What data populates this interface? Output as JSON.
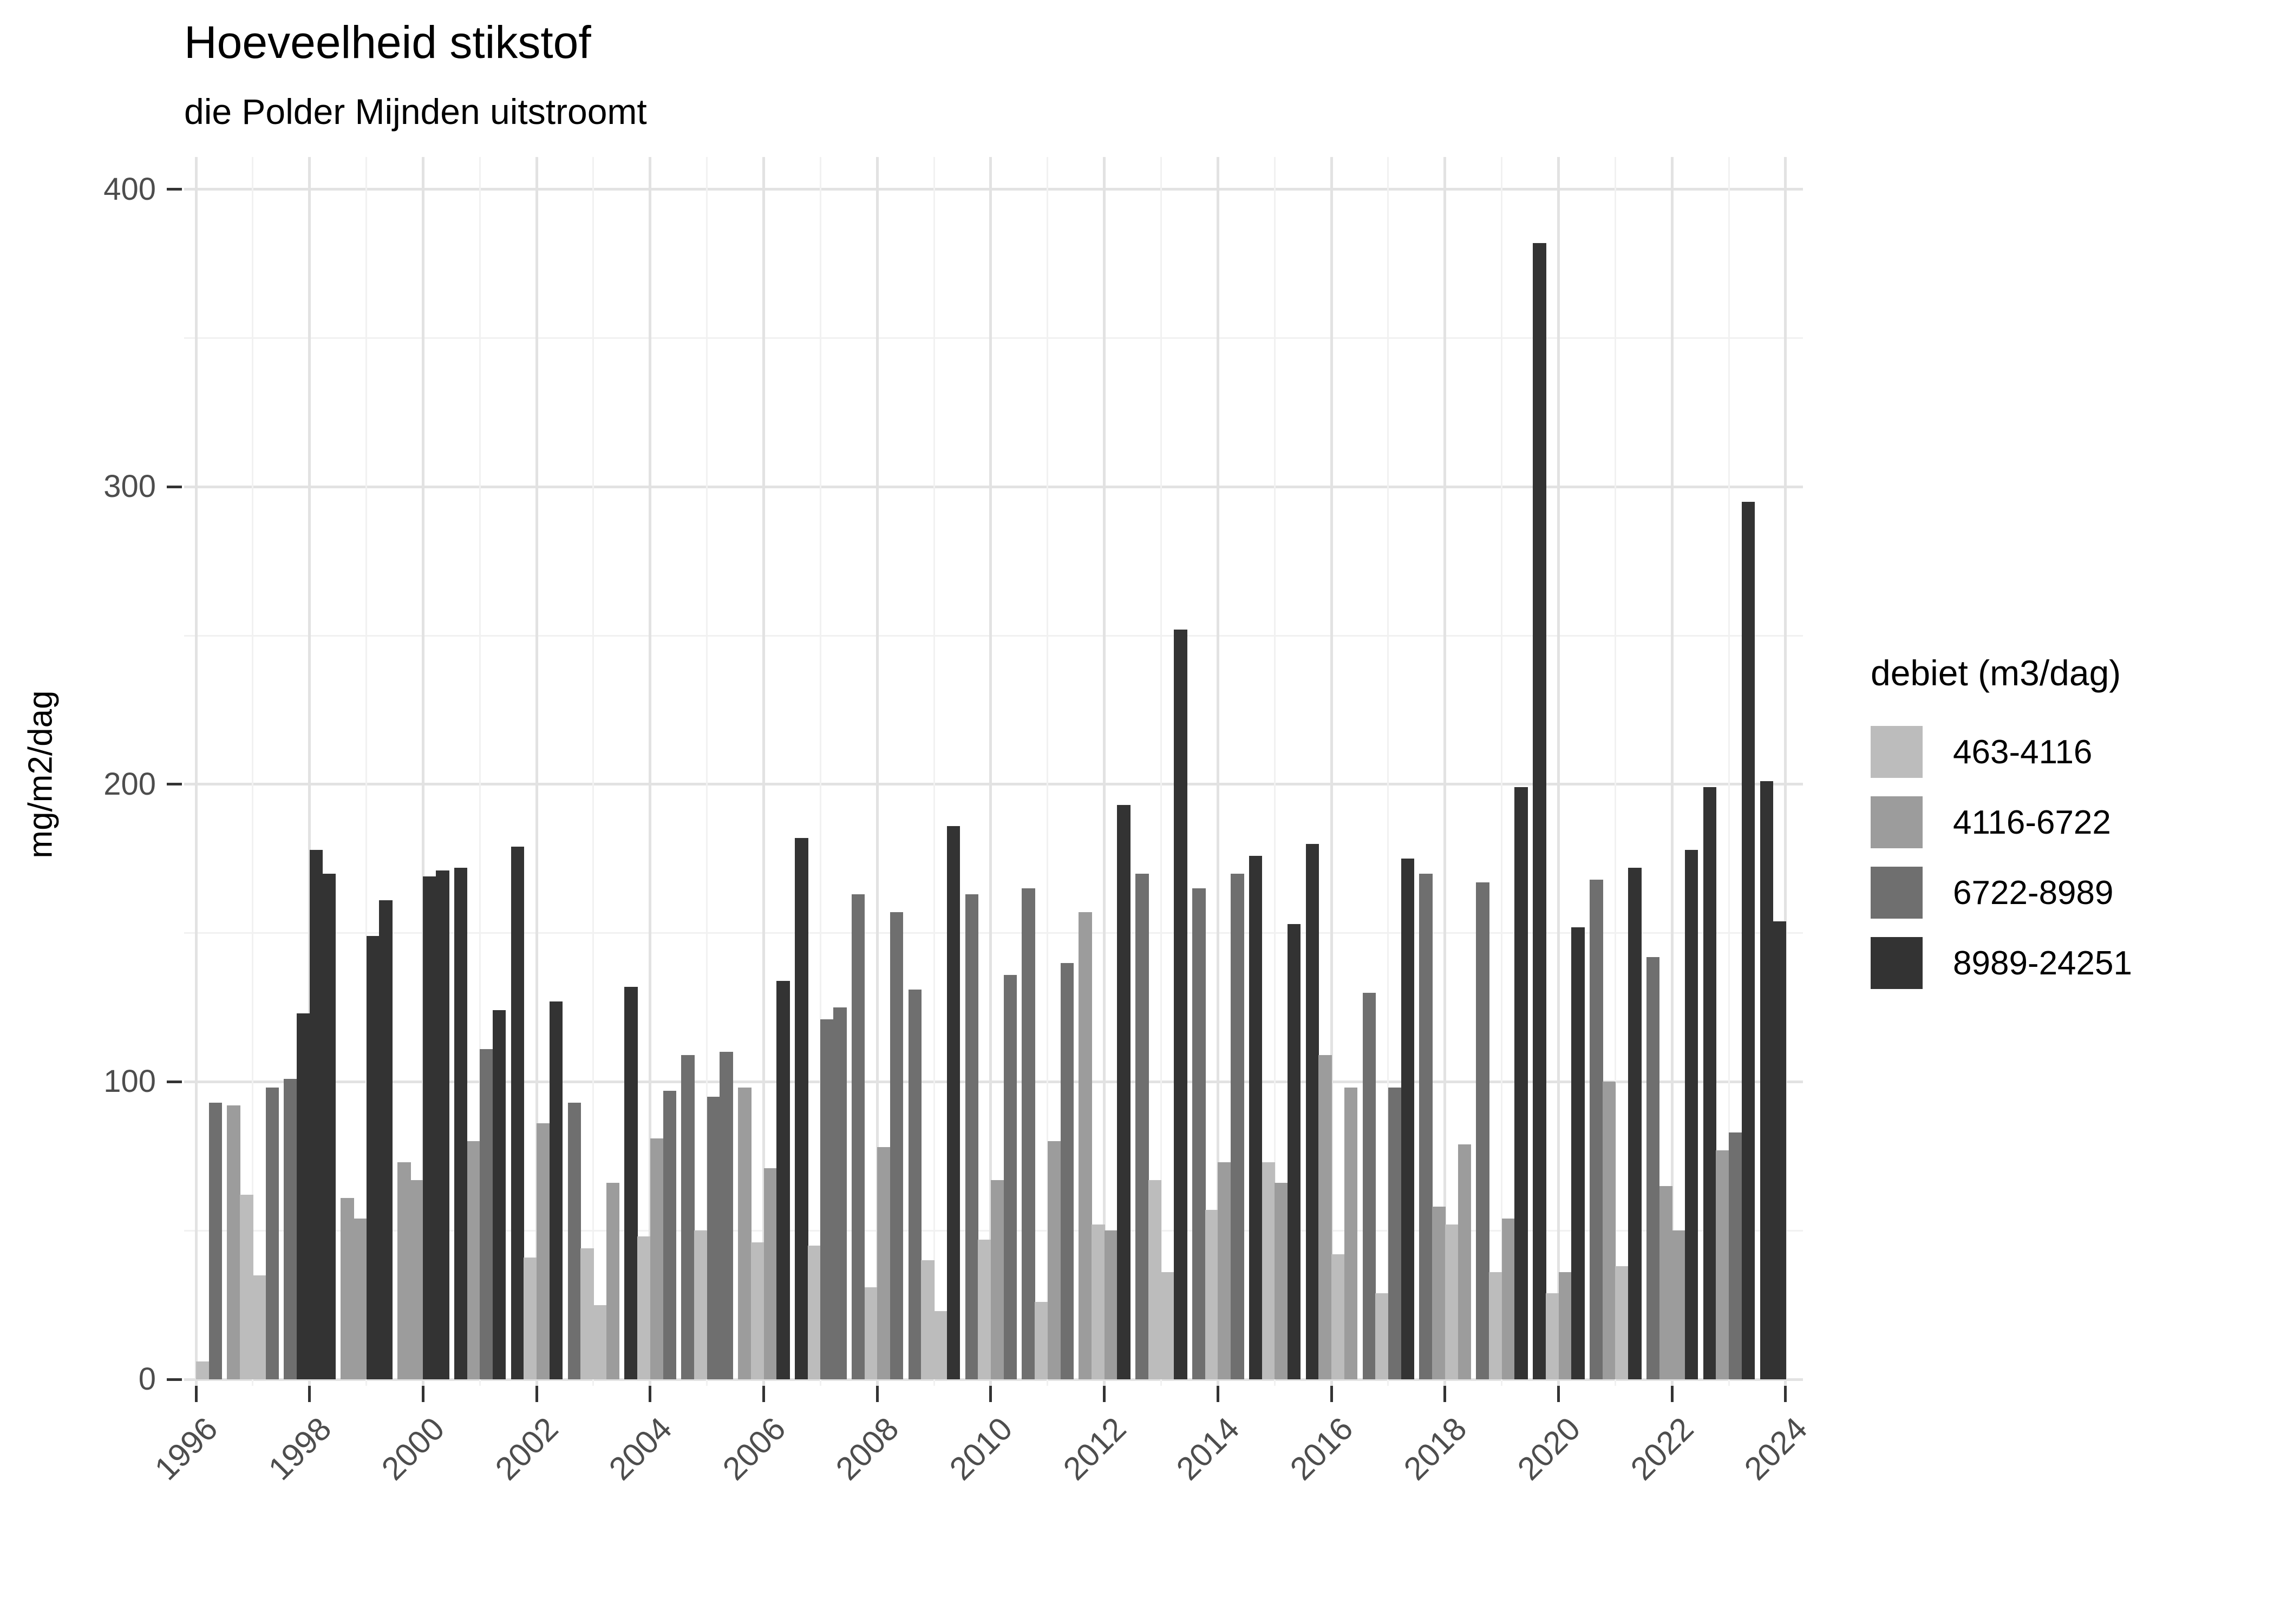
{
  "title": "Hoeveelheid stikstof",
  "subtitle": "die Polder Mijnden uitstroomt",
  "y_axis_title": "mg/m2/dag",
  "legend": {
    "title": "debiet (m3/dag)",
    "items": [
      {
        "label": "463-4116",
        "key": "L",
        "color": "#bcbcbc"
      },
      {
        "label": "4116-6722",
        "key": "M",
        "color": "#9c9c9c"
      },
      {
        "label": "6722-8989",
        "key": "D",
        "color": "#6f6f6f"
      },
      {
        "label": "8989-24251",
        "key": "K",
        "color": "#333333"
      }
    ]
  },
  "chart_data": {
    "type": "bar",
    "title": "Hoeveelheid stikstof",
    "subtitle": "die Polder Mijnden uitstroomt",
    "xlabel": "",
    "ylabel": "mg/m2/dag",
    "legend_title": "debiet (m3/dag)",
    "legend_position": "right",
    "grid": true,
    "ylim": [
      0,
      400
    ],
    "y_ticks": [
      0,
      100,
      200,
      300,
      400
    ],
    "y_minor_ticks": [
      50,
      150,
      250,
      350
    ],
    "x_tick_years": [
      1996,
      1998,
      2000,
      2002,
      2004,
      2006,
      2008,
      2010,
      2012,
      2014,
      2016,
      2018,
      2020,
      2022,
      2024
    ],
    "x_all_years": [
      1996,
      1997,
      1998,
      1999,
      2000,
      2001,
      2002,
      2003,
      2004,
      2005,
      2006,
      2007,
      2008,
      2009,
      2010,
      2011,
      2012,
      2013,
      2014,
      2015,
      2016,
      2017,
      2018,
      2019,
      2020,
      2021,
      2022,
      2023,
      2024
    ],
    "palette": {
      "L": "#bcbcbc",
      "M": "#9c9c9c",
      "D": "#6f6f6f",
      "K": "#333333"
    },
    "category_ranges": {
      "L": "463-4116",
      "M": "4116-6722",
      "D": "6722-8989",
      "K": "8989-24251"
    },
    "note": "Each year tick has a group of 4 quarterly bars (slots 0-3) centered on the year gridline; value in mg/m2/dag, category = debiet class",
    "groups": [
      {
        "year": 1996,
        "bars": [
          [
            2,
            6,
            "L"
          ],
          [
            3,
            93,
            "D"
          ]
        ]
      },
      {
        "year": 1997,
        "bars": [
          [
            0,
            92,
            "M"
          ],
          [
            1,
            62,
            "L"
          ],
          [
            2,
            35,
            "L"
          ],
          [
            3,
            98,
            "D"
          ]
        ]
      },
      {
        "year": 1998,
        "bars": [
          [
            0,
            101,
            "D"
          ],
          [
            1,
            123,
            "K"
          ],
          [
            2,
            178,
            "K"
          ],
          [
            3,
            170,
            "K"
          ]
        ]
      },
      {
        "year": 1999,
        "bars": [
          [
            0,
            61,
            "M"
          ],
          [
            1,
            54,
            "M"
          ],
          [
            2,
            149,
            "K"
          ],
          [
            3,
            161,
            "K"
          ]
        ]
      },
      {
        "year": 2000,
        "bars": [
          [
            0,
            73,
            "M"
          ],
          [
            1,
            67,
            "M"
          ],
          [
            2,
            169,
            "K"
          ],
          [
            3,
            171,
            "K"
          ]
        ]
      },
      {
        "year": 2001,
        "bars": [
          [
            0,
            172,
            "K"
          ],
          [
            1,
            80,
            "M"
          ],
          [
            2,
            111,
            "D"
          ],
          [
            3,
            124,
            "K"
          ]
        ]
      },
      {
        "year": 2002,
        "bars": [
          [
            0,
            179,
            "K"
          ],
          [
            1,
            41,
            "L"
          ],
          [
            2,
            86,
            "M"
          ],
          [
            3,
            127,
            "K"
          ]
        ]
      },
      {
        "year": 2003,
        "bars": [
          [
            0,
            93,
            "D"
          ],
          [
            1,
            44,
            "L"
          ],
          [
            2,
            25,
            "L"
          ],
          [
            3,
            66,
            "M"
          ]
        ]
      },
      {
        "year": 2004,
        "bars": [
          [
            0,
            132,
            "K"
          ],
          [
            1,
            48,
            "L"
          ],
          [
            2,
            81,
            "M"
          ],
          [
            3,
            97,
            "D"
          ]
        ]
      },
      {
        "year": 2005,
        "bars": [
          [
            0,
            109,
            "D"
          ],
          [
            1,
            50,
            "L"
          ],
          [
            2,
            95,
            "D"
          ],
          [
            3,
            110,
            "D"
          ]
        ]
      },
      {
        "year": 2006,
        "bars": [
          [
            0,
            98,
            "M"
          ],
          [
            1,
            46,
            "L"
          ],
          [
            2,
            71,
            "M"
          ],
          [
            3,
            134,
            "K"
          ]
        ]
      },
      {
        "year": 2007,
        "bars": [
          [
            0,
            182,
            "K"
          ],
          [
            1,
            45,
            "L"
          ],
          [
            2,
            121,
            "D"
          ],
          [
            3,
            125,
            "D"
          ]
        ]
      },
      {
        "year": 2008,
        "bars": [
          [
            0,
            163,
            "D"
          ],
          [
            1,
            31,
            "L"
          ],
          [
            2,
            78,
            "M"
          ],
          [
            3,
            157,
            "D"
          ]
        ]
      },
      {
        "year": 2009,
        "bars": [
          [
            0,
            131,
            "D"
          ],
          [
            1,
            40,
            "L"
          ],
          [
            2,
            23,
            "L"
          ],
          [
            3,
            186,
            "K"
          ]
        ]
      },
      {
        "year": 2010,
        "bars": [
          [
            0,
            163,
            "D"
          ],
          [
            1,
            47,
            "L"
          ],
          [
            2,
            67,
            "M"
          ],
          [
            3,
            136,
            "D"
          ]
        ]
      },
      {
        "year": 2011,
        "bars": [
          [
            0,
            165,
            "D"
          ],
          [
            1,
            26,
            "L"
          ],
          [
            2,
            80,
            "M"
          ],
          [
            3,
            140,
            "D"
          ]
        ]
      },
      {
        "year": 2012,
        "bars": [
          [
            0,
            157,
            "M"
          ],
          [
            1,
            52,
            "L"
          ],
          [
            2,
            50,
            "M"
          ],
          [
            3,
            193,
            "K"
          ]
        ]
      },
      {
        "year": 2013,
        "bars": [
          [
            0,
            170,
            "D"
          ],
          [
            1,
            67,
            "L"
          ],
          [
            2,
            36,
            "L"
          ],
          [
            3,
            252,
            "K"
          ]
        ]
      },
      {
        "year": 2014,
        "bars": [
          [
            0,
            165,
            "D"
          ],
          [
            1,
            57,
            "L"
          ],
          [
            2,
            73,
            "M"
          ],
          [
            3,
            170,
            "D"
          ]
        ]
      },
      {
        "year": 2015,
        "bars": [
          [
            0,
            176,
            "K"
          ],
          [
            1,
            73,
            "L"
          ],
          [
            2,
            66,
            "M"
          ],
          [
            3,
            153,
            "K"
          ]
        ]
      },
      {
        "year": 2016,
        "bars": [
          [
            0,
            180,
            "K"
          ],
          [
            1,
            109,
            "M"
          ],
          [
            2,
            42,
            "L"
          ],
          [
            3,
            98,
            "M"
          ]
        ]
      },
      {
        "year": 2017,
        "bars": [
          [
            0,
            130,
            "D"
          ],
          [
            1,
            29,
            "L"
          ],
          [
            2,
            98,
            "D"
          ],
          [
            3,
            175,
            "K"
          ]
        ]
      },
      {
        "year": 2018,
        "bars": [
          [
            0,
            170,
            "D"
          ],
          [
            1,
            58,
            "M"
          ],
          [
            2,
            52,
            "L"
          ],
          [
            3,
            79,
            "M"
          ]
        ]
      },
      {
        "year": 2019,
        "bars": [
          [
            0,
            167,
            "D"
          ],
          [
            1,
            36,
            "L"
          ],
          [
            2,
            54,
            "M"
          ],
          [
            3,
            199,
            "K"
          ]
        ]
      },
      {
        "year": 2020,
        "bars": [
          [
            0,
            382,
            "K"
          ],
          [
            1,
            29,
            "L"
          ],
          [
            2,
            36,
            "M"
          ],
          [
            3,
            152,
            "K"
          ]
        ]
      },
      {
        "year": 2021,
        "bars": [
          [
            0,
            168,
            "D"
          ],
          [
            1,
            100,
            "M"
          ],
          [
            2,
            38,
            "L"
          ],
          [
            3,
            172,
            "K"
          ]
        ]
      },
      {
        "year": 2022,
        "bars": [
          [
            0,
            142,
            "D"
          ],
          [
            1,
            65,
            "M"
          ],
          [
            2,
            50,
            "M"
          ],
          [
            3,
            178,
            "K"
          ]
        ]
      },
      {
        "year": 2023,
        "bars": [
          [
            0,
            199,
            "K"
          ],
          [
            1,
            77,
            "M"
          ],
          [
            2,
            83,
            "D"
          ],
          [
            3,
            295,
            "K"
          ]
        ]
      },
      {
        "year": 2024,
        "bars": [
          [
            0,
            201,
            "K"
          ],
          [
            1,
            154,
            "K"
          ]
        ]
      }
    ]
  }
}
